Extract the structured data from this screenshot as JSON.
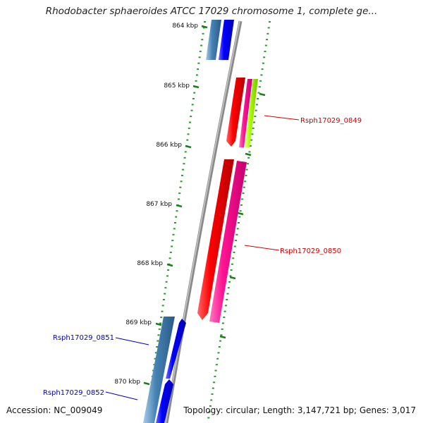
{
  "title": "Rhodobacter sphaeroides ATCC 17029 chromosome 1, complete ge...",
  "ticks": [
    "864 kbp",
    "865 kbp",
    "866 kbp",
    "867 kbp",
    "868 kbp",
    "869 kbp",
    "870 kbp"
  ],
  "genes": [
    {
      "label": "Rsph17029_0849",
      "color": "#cc0000"
    },
    {
      "label": "Rsph17029_0850",
      "color": "#cc0000"
    },
    {
      "label": "Rsph17029_0851",
      "color": "#0000bb"
    },
    {
      "label": "Rsph17029_0852",
      "color": "#0000bb"
    }
  ],
  "colors": {
    "backbone": "#8a8a8a",
    "tick": "#1a7f1a",
    "dot": "#2a9a2a",
    "red": "#ff0000",
    "magenta": "#ff1493",
    "lime": "#aaff00",
    "steelblue": "#4682b4",
    "blue": "#0000ff"
  },
  "footer": {
    "accession": "Accession: NC_009049",
    "summary": "Topology: circular; Length: 3,147,721 bp; Genes: 3,017"
  }
}
